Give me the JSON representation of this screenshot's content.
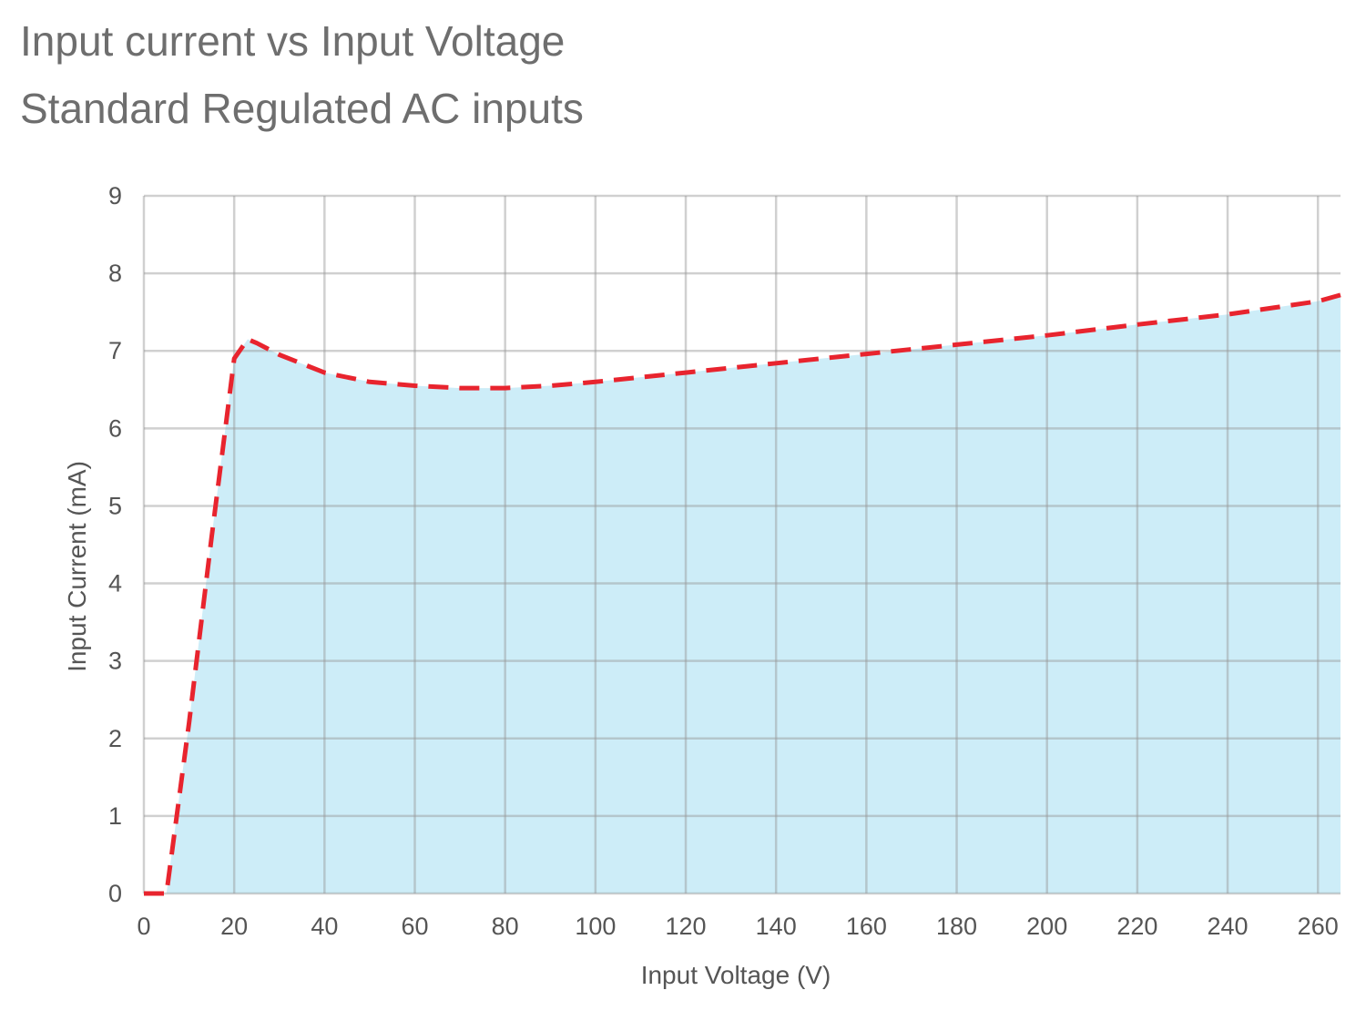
{
  "header": {
    "title": "Input current vs Input Voltage",
    "subtitle": "Standard Regulated AC inputs"
  },
  "chart_data": {
    "type": "area",
    "title": "Input current vs Input Voltage",
    "subtitle": "Standard Regulated AC inputs",
    "xlabel": "Input Voltage (V)",
    "ylabel": "Input Current (mA)",
    "xlim": [
      0,
      265
    ],
    "ylim": [
      0,
      9
    ],
    "xticks": [
      0,
      20,
      40,
      60,
      80,
      100,
      120,
      140,
      160,
      180,
      200,
      220,
      240,
      260
    ],
    "yticks": [
      0,
      1,
      2,
      3,
      4,
      5,
      6,
      7,
      8,
      9
    ],
    "grid": true,
    "series": [
      {
        "x": [
          0,
          5,
          10,
          15,
          20,
          23,
          25,
          30,
          40,
          50,
          60,
          70,
          80,
          90,
          100,
          120,
          140,
          160,
          180,
          200,
          220,
          240,
          260,
          265
        ],
        "y": [
          0,
          0,
          2.2,
          4.6,
          6.9,
          7.15,
          7.1,
          6.95,
          6.72,
          6.6,
          6.55,
          6.52,
          6.52,
          6.55,
          6.6,
          6.72,
          6.84,
          6.96,
          7.08,
          7.2,
          7.34,
          7.47,
          7.64,
          7.72
        ],
        "line_color": "#e8242e",
        "line_style": "dashed",
        "fill_color": "#cdedf8"
      }
    ]
  }
}
